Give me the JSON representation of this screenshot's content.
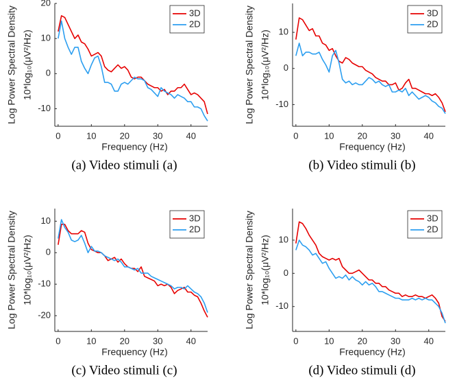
{
  "chart_data": [
    {
      "type": "line",
      "xlabel": "Frequency (Hz)",
      "ylabel": [
        "Log Power Spectral Density",
        "10*log₁₀(μV²/Hz)"
      ],
      "caption": "(a) Video stimuli (a)",
      "x": [
        0,
        1,
        2,
        3,
        4,
        5,
        6,
        7,
        8,
        9,
        10,
        11,
        12,
        13,
        14,
        15,
        16,
        17,
        18,
        19,
        20,
        21,
        22,
        23,
        24,
        25,
        26,
        27,
        28,
        29,
        30,
        31,
        32,
        33,
        34,
        35,
        36,
        37,
        38,
        39,
        40,
        41,
        42,
        43,
        44,
        45
      ],
      "series": [
        {
          "name": "3D",
          "color": "#e60000",
          "values": [
            12,
            16.5,
            16,
            14,
            12,
            10,
            11,
            9,
            8.5,
            7,
            5,
            5.5,
            6,
            5,
            2,
            1,
            0.5,
            1.5,
            2.5,
            1.5,
            2,
            1,
            -1,
            -1.5,
            -1,
            -1,
            -2,
            -3,
            -3.5,
            -4,
            -4,
            -5,
            -4.5,
            -6,
            -5,
            -5,
            -4,
            -4,
            -3,
            -4.5,
            -6,
            -5.5,
            -6,
            -7,
            -8,
            -11.5
          ]
        },
        {
          "name": "2D",
          "color": "#2b9ef0",
          "values": [
            10,
            15,
            10,
            7.5,
            5.5,
            7.5,
            7.5,
            3.5,
            1.5,
            0,
            2.5,
            4.5,
            5,
            2,
            -2.5,
            -2.5,
            -3,
            -5,
            -5,
            -3,
            -2.5,
            -3,
            -2,
            -1,
            -1.5,
            -1.5,
            -2,
            -4,
            -4.5,
            -5.5,
            -6.5,
            -4,
            -5,
            -5.5,
            -6,
            -7,
            -6,
            -6.5,
            -7,
            -8,
            -8,
            -9.5,
            -9.5,
            -10,
            -12,
            -13.5
          ]
        }
      ],
      "xlim": [
        -1,
        45
      ],
      "ylim": [
        -15,
        20
      ],
      "xticks": [
        0,
        10,
        20,
        30,
        40
      ],
      "yticks": [
        -10,
        0,
        10,
        20
      ],
      "legend": "upper right"
    },
    {
      "type": "line",
      "xlabel": "Frequency (Hz)",
      "ylabel": [
        "Log Power Spectral Density",
        "10*log₁₀(μV²/Hz)"
      ],
      "caption": "(b) Video stimuli (b)",
      "x": [
        0,
        1,
        2,
        3,
        4,
        5,
        6,
        7,
        8,
        9,
        10,
        11,
        12,
        13,
        14,
        15,
        16,
        17,
        18,
        19,
        20,
        21,
        22,
        23,
        24,
        25,
        26,
        27,
        28,
        29,
        30,
        31,
        32,
        33,
        34,
        35,
        36,
        37,
        38,
        39,
        40,
        41,
        42,
        43,
        44,
        45
      ],
      "series": [
        {
          "name": "3D",
          "color": "#e60000",
          "values": [
            8,
            14,
            13.5,
            12,
            10.5,
            11,
            9,
            9,
            7,
            6.5,
            5,
            5.5,
            3.5,
            2,
            1.5,
            3,
            2.5,
            1.5,
            1,
            0.5,
            0.5,
            -0.5,
            -1,
            -1.5,
            -2.5,
            -3,
            -3.5,
            -3.5,
            -4.5,
            -4.5,
            -4,
            -6,
            -5.5,
            -4,
            -3,
            -5.5,
            -5.5,
            -6,
            -6.5,
            -7,
            -7,
            -7.5,
            -7,
            -8,
            -9.5,
            -12
          ]
        },
        {
          "name": "2D",
          "color": "#2b9ef0",
          "values": [
            3.5,
            7,
            3.5,
            4.5,
            4.5,
            4,
            4,
            4.5,
            2.5,
            1,
            -1,
            3.5,
            5,
            1.5,
            -3,
            -4,
            -3.5,
            -4.5,
            -4,
            -4.5,
            -4.5,
            -3.5,
            -2.5,
            -3,
            -4,
            -3.5,
            -4.5,
            -5,
            -4.5,
            -6.5,
            -6.5,
            -6,
            -6.5,
            -5.5,
            -7.5,
            -6.5,
            -7.5,
            -8.5,
            -8,
            -7.5,
            -8,
            -9,
            -9.5,
            -10.5,
            -11,
            -12.5
          ]
        }
      ],
      "xlim": [
        -1,
        45
      ],
      "ylim": [
        -16,
        18
      ],
      "xticks": [
        0,
        10,
        20,
        30,
        40
      ],
      "yticks": [
        -10,
        0,
        10
      ],
      "legend": "upper right"
    },
    {
      "type": "line",
      "xlabel": "Frequency (Hz)",
      "ylabel": [
        "Log Power Spectral Density",
        "10*log₁₀(μV²/Hz)"
      ],
      "caption": "(c) Video stimuli (c)",
      "x": [
        0,
        1,
        2,
        3,
        4,
        5,
        6,
        7,
        8,
        9,
        10,
        11,
        12,
        13,
        14,
        15,
        16,
        17,
        18,
        19,
        20,
        21,
        22,
        23,
        24,
        25,
        26,
        27,
        28,
        29,
        30,
        31,
        32,
        33,
        34,
        35,
        36,
        37,
        38,
        39,
        40,
        41,
        42,
        43,
        44,
        45
      ],
      "series": [
        {
          "name": "3D",
          "color": "#e60000",
          "values": [
            2.5,
            9,
            9,
            7,
            6,
            6,
            6,
            7,
            6.5,
            3,
            1,
            0.5,
            0,
            0,
            -1,
            -2.5,
            -2,
            -1.5,
            -3,
            -2,
            -3.5,
            -4.5,
            -5,
            -5,
            -6,
            -4.5,
            -7.5,
            -8,
            -8.5,
            -9,
            -10.5,
            -10,
            -10.5,
            -10,
            -11,
            -13,
            -12,
            -11.5,
            -11,
            -12.5,
            -12.5,
            -13.5,
            -14,
            -16,
            -18.5,
            -20.5
          ]
        },
        {
          "name": "2D",
          "color": "#2b9ef0",
          "values": [
            4.5,
            10.5,
            8,
            6.5,
            4,
            3.5,
            4,
            5.5,
            3,
            0,
            2,
            0.5,
            0.5,
            0,
            -1,
            -1.5,
            -2,
            -2.5,
            -2,
            -3,
            -4.5,
            -4.5,
            -5,
            -5.5,
            -5,
            -6.5,
            -6.5,
            -6.5,
            -7.5,
            -8,
            -8.5,
            -9,
            -9.5,
            -10,
            -10.5,
            -11.5,
            -11,
            -11,
            -11.5,
            -10.5,
            -11.5,
            -12.5,
            -13,
            -14,
            -16,
            -19
          ]
        }
      ],
      "xlim": [
        -1,
        45
      ],
      "ylim": [
        -25,
        14
      ],
      "xticks": [
        0,
        10,
        20,
        30,
        40
      ],
      "yticks": [
        -20,
        -10,
        0,
        10
      ],
      "legend": "upper right"
    },
    {
      "type": "line",
      "xlabel": "Frequency (Hz)",
      "ylabel": [
        "Log Power Spectral Density",
        "10*log₁₀(μV²/Hz)"
      ],
      "caption": "(d) Video stimuli (d)",
      "x": [
        0,
        1,
        2,
        3,
        4,
        5,
        6,
        7,
        8,
        9,
        10,
        11,
        12,
        13,
        14,
        15,
        16,
        17,
        18,
        19,
        20,
        21,
        22,
        23,
        24,
        25,
        26,
        27,
        28,
        29,
        30,
        31,
        32,
        33,
        34,
        35,
        36,
        37,
        38,
        39,
        40,
        41,
        42,
        43,
        44,
        45
      ],
      "series": [
        {
          "name": "3D",
          "color": "#e60000",
          "values": [
            9,
            15.5,
            15,
            13.5,
            11.5,
            10,
            8.5,
            6,
            5,
            4.5,
            4,
            4.5,
            4,
            4.5,
            2,
            1,
            0,
            0,
            0.5,
            1,
            0,
            -1,
            -2,
            -2,
            -3,
            -3,
            -4,
            -4,
            -5,
            -5.5,
            -6,
            -6,
            -7,
            -6.5,
            -7,
            -7,
            -6.5,
            -7,
            -7,
            -7.5,
            -7,
            -6.5,
            -7.5,
            -9,
            -13,
            -14.5
          ]
        },
        {
          "name": "2D",
          "color": "#2b9ef0",
          "values": [
            7,
            10,
            8.5,
            8,
            7,
            5.5,
            6,
            4.5,
            3,
            3.5,
            1.5,
            0,
            -1.5,
            -1,
            -1.5,
            -0.5,
            -2,
            -1,
            -2,
            -2.5,
            -3.5,
            -2.5,
            -3.5,
            -3,
            -4,
            -5.5,
            -5.5,
            -6,
            -6.5,
            -7,
            -7.5,
            -7.5,
            -8,
            -8,
            -8,
            -7.5,
            -8,
            -7.5,
            -8,
            -7.5,
            -8,
            -8,
            -9,
            -10,
            -12,
            -15
          ]
        }
      ],
      "xlim": [
        -1,
        45
      ],
      "ylim": [
        -17.5,
        19.5
      ],
      "xticks": [
        0,
        10,
        20,
        30,
        40
      ],
      "yticks": [
        -10,
        0,
        10
      ],
      "legend": "upper right"
    }
  ]
}
